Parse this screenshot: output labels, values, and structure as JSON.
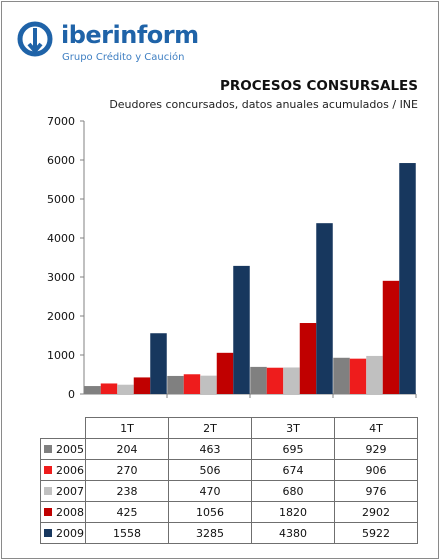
{
  "header": {
    "brand_name": "iberinform",
    "brand_tagline": "Grupo Crédito y Caución"
  },
  "chart_data": {
    "type": "bar",
    "title": "PROCESOS CONSURSALES",
    "subtitle": "Deudores concursados, datos anuales acumulados  / INE",
    "categories": [
      "1T",
      "2T",
      "3T",
      "4T"
    ],
    "ylim": [
      0,
      7000
    ],
    "yticks": [
      0,
      1000,
      2000,
      3000,
      4000,
      5000,
      6000,
      7000
    ],
    "grid": false,
    "legend": "data-table",
    "series": [
      {
        "name": "2005",
        "color": "#808080",
        "values": [
          204,
          463,
          695,
          929
        ]
      },
      {
        "name": "2006",
        "color": "#ee1c1c",
        "values": [
          270,
          506,
          674,
          906
        ]
      },
      {
        "name": "2007",
        "color": "#c0c0c0",
        "values": [
          238,
          470,
          680,
          976
        ]
      },
      {
        "name": "2008",
        "color": "#c00000",
        "values": [
          425,
          1056,
          1820,
          2902
        ]
      },
      {
        "name": "2009",
        "color": "#17375e",
        "values": [
          1558,
          3285,
          4380,
          5922
        ]
      }
    ]
  }
}
